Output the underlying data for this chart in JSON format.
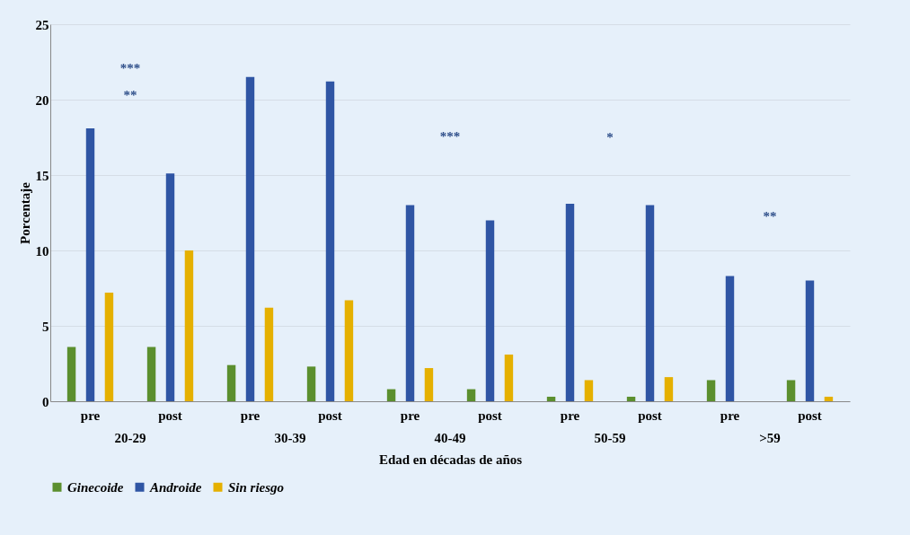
{
  "chart_data": {
    "type": "bar",
    "xlabel": "Edad en décadas de años",
    "ylabel": "Porcentaje",
    "categories": [
      "pre",
      "post",
      "pre",
      "post",
      "pre",
      "post",
      "pre",
      "post",
      "pre",
      "post"
    ],
    "series": [
      {
        "name": "Ginecoide",
        "color": "#5b8f2e",
        "values": [
          3.6,
          3.6,
          2.4,
          2.3,
          0.8,
          0.8,
          0.3,
          0.3,
          1.4,
          1.4
        ]
      },
      {
        "name": "Androide",
        "color": "#2f55a4",
        "values": [
          18.1,
          15.1,
          21.5,
          21.2,
          13.0,
          12.0,
          13.1,
          13.0,
          8.3,
          8.0
        ]
      },
      {
        "name": "Sin riesgo",
        "color": "#e5b000",
        "values": [
          7.2,
          10.0,
          6.2,
          6.7,
          2.2,
          3.1,
          1.4,
          1.6,
          0,
          0.3
        ]
      }
    ],
    "ylim": [
      0,
      25
    ],
    "yticks": [
      0,
      5,
      10,
      15,
      20,
      25
    ],
    "grid": "y",
    "legend": "bottom",
    "annotations": [
      "20-29",
      "30-39",
      "40-49",
      "50-59",
      ">59",
      "**",
      "***",
      "***",
      "*",
      "**"
    ]
  }
}
